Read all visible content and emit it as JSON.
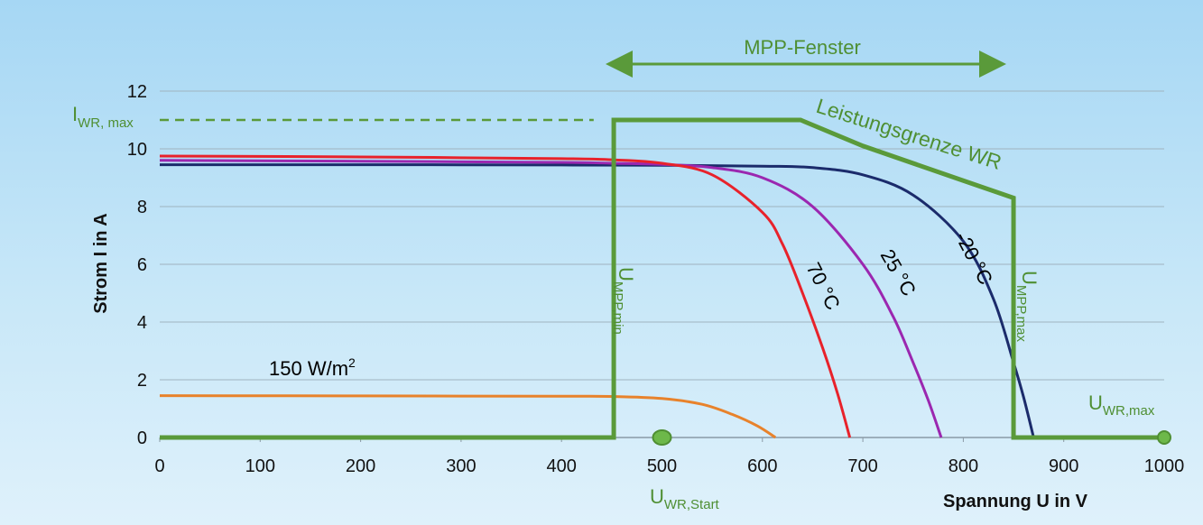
{
  "chart_data": {
    "type": "line",
    "xlabel": "Spannung U in V",
    "ylabel": "Strom I in A",
    "xlim": [
      0,
      1000
    ],
    "ylim": [
      0,
      12
    ],
    "xticks": [
      "0",
      "100",
      "200",
      "300",
      "400",
      "500",
      "600",
      "700",
      "800",
      "900",
      "1000"
    ],
    "yticks": [
      "0",
      "2",
      "4",
      "6",
      "8",
      "10",
      "12"
    ],
    "grid": true,
    "series": [
      {
        "name": "-20 °C",
        "label": "-20 °C",
        "color": "#1b2b6b",
        "x": [
          0,
          200,
          400,
          500,
          600,
          650,
          700,
          750,
          800,
          830,
          850,
          860,
          870
        ],
        "y": [
          9.45,
          9.45,
          9.44,
          9.43,
          9.4,
          9.35,
          9.1,
          8.4,
          6.8,
          4.8,
          2.6,
          1.4,
          0
        ]
      },
      {
        "name": "25 °C",
        "label": "25 °C",
        "color": "#9b27b0",
        "x": [
          0,
          200,
          400,
          450,
          500,
          550,
          600,
          650,
          700,
          730,
          750,
          765,
          778
        ],
        "y": [
          9.6,
          9.57,
          9.53,
          9.5,
          9.46,
          9.35,
          9.0,
          8.0,
          6.0,
          4.2,
          2.6,
          1.3,
          0
        ]
      },
      {
        "name": "70 °C",
        "label": "70 °C",
        "color": "#e8222b",
        "x": [
          0,
          200,
          400,
          450,
          500,
          550,
          600,
          620,
          640,
          660,
          675,
          687
        ],
        "y": [
          9.75,
          9.72,
          9.66,
          9.62,
          9.5,
          9.1,
          7.8,
          6.7,
          5.0,
          3.1,
          1.5,
          0
        ]
      },
      {
        "name": "150 W/m2",
        "label": "150 W/m",
        "label_sup": "2",
        "color": "#e8822b",
        "x": [
          0,
          200,
          400,
          450,
          500,
          540,
          570,
          595,
          613
        ],
        "y": [
          1.45,
          1.44,
          1.43,
          1.42,
          1.35,
          1.15,
          0.8,
          0.4,
          0
        ]
      }
    ],
    "inverter_window": {
      "color": "#5a9a3a",
      "x": [
        0,
        452,
        452,
        638,
        700,
        800,
        850,
        850,
        1000
      ],
      "y": [
        0,
        0,
        11,
        11,
        10.1,
        8.9,
        8.3,
        0,
        0
      ],
      "i_max": 11,
      "i_max_line_x": [
        0,
        432
      ],
      "mpp_window_v": [
        452,
        850
      ],
      "start_voltage": 500,
      "max_voltage": 1000
    },
    "annotations": {
      "mpp_fenster": "MPP-Fenster",
      "leistungsgrenze": "Leistungsgrenze WR",
      "iwr_max_main": "I",
      "iwr_max_sub": "WR, max",
      "umpp_min_main": "U",
      "umpp_min_sub": "MPP,min",
      "umpp_max_main": "U",
      "umpp_max_sub": "MPP,max",
      "uwr_start_main": "U",
      "uwr_start_sub": "WR,Start",
      "uwr_max_main": "U",
      "uwr_max_sub": "WR,max"
    }
  }
}
